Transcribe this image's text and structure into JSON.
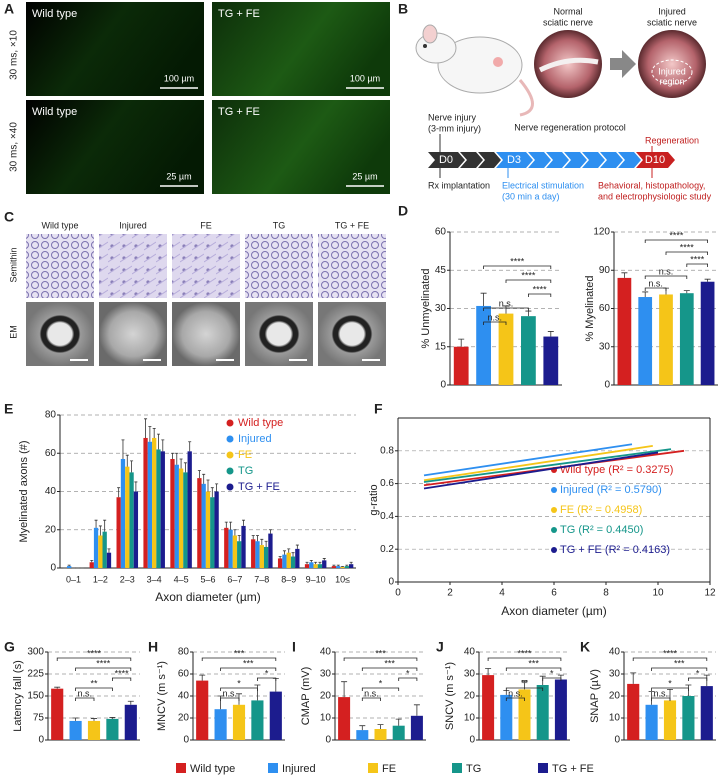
{
  "panel_labels": [
    "A",
    "B",
    "C",
    "D",
    "E",
    "F",
    "G",
    "H",
    "I",
    "J",
    "K"
  ],
  "panel_a": {
    "rows": [
      "30 ms, ×10",
      "30 ms, ×40"
    ],
    "images": [
      {
        "label": "Wild type",
        "scale": "100 µm"
      },
      {
        "label": "TG + FE",
        "scale": "100 µm"
      },
      {
        "label": "Wild type",
        "scale": "25 µm"
      },
      {
        "label": "TG + FE",
        "scale": "25 µm"
      }
    ]
  },
  "panel_b": {
    "normal": [
      "Normal",
      "sciatic nerve"
    ],
    "injured": [
      "Injured",
      "sciatic nerve"
    ],
    "injured_region": [
      "Injured",
      "region"
    ],
    "injury": [
      "Nerve injury",
      "(3-mm injury)"
    ],
    "protocol": "Nerve regeneration protocol",
    "regeneration": "Regeneration",
    "days": [
      "D0",
      "D3",
      "D10"
    ],
    "rx": "Rx implantation",
    "stim": [
      "Electrical stimulation",
      "(30 min a day)"
    ],
    "study": [
      "Behavioral, histopathology,",
      "and electrophysiologic study"
    ]
  },
  "panel_c": {
    "columns": [
      "Wild type",
      "Injured",
      "FE",
      "TG",
      "TG + FE"
    ],
    "rows": [
      "Semithin",
      "EM"
    ]
  },
  "legend": [
    {
      "name": "Wild type",
      "color": "#d42020"
    },
    {
      "name": "Injured",
      "color": "#2e8ff0"
    },
    {
      "name": "FE",
      "color": "#f5c518"
    },
    {
      "name": "TG",
      "color": "#15968a"
    },
    {
      "name": "TG + FE",
      "color": "#1c1c8e"
    }
  ],
  "chart_data": [
    {
      "type": "bar",
      "y_label": "% Unmyelinated",
      "values": [
        15,
        31,
        28,
        27,
        19
      ],
      "errors": [
        3,
        5,
        3,
        2,
        2
      ],
      "colors": [
        "#d42020",
        "#2e8ff0",
        "#f5c518",
        "#15968a",
        "#1c1c8e"
      ],
      "ylim": [
        0,
        60
      ],
      "yticks": [
        0,
        15,
        30,
        45,
        60
      ],
      "grid": true,
      "annotations": [
        "****",
        "****",
        "****",
        "n.s.",
        "n.s."
      ]
    },
    {
      "type": "bar",
      "y_label": "% Myelinated",
      "values": [
        84,
        69,
        71,
        72,
        81
      ],
      "errors": [
        4,
        4,
        5,
        2,
        2
      ],
      "colors": [
        "#d42020",
        "#2e8ff0",
        "#f5c518",
        "#15968a",
        "#1c1c8e"
      ],
      "ylim": [
        0,
        120
      ],
      "yticks": [
        0,
        30,
        60,
        90,
        120
      ],
      "grid": true,
      "annotations": [
        "****",
        "****",
        "****",
        "n.s.",
        "n.s."
      ]
    },
    {
      "type": "bar",
      "y_label": "Myelinated axons (#)",
      "x_label": "Axon diameter (µm)",
      "categories": [
        "0–1",
        "1–2",
        "2–3",
        "3–4",
        "4–5",
        "5–6",
        "6–7",
        "7–8",
        "8–9",
        "9–10",
        "10≤"
      ],
      "series": [
        {
          "name": "Wild type",
          "color": "#d42020",
          "values": [
            0,
            3,
            37,
            68,
            57,
            47,
            21,
            15,
            5,
            2,
            1
          ],
          "errors": [
            0,
            1,
            5,
            10,
            3,
            4,
            3,
            2,
            1,
            1,
            0.5
          ]
        },
        {
          "name": "Injured",
          "color": "#2e8ff0",
          "values": [
            1,
            21,
            57,
            66,
            54,
            44,
            20,
            14,
            7,
            3,
            1
          ],
          "errors": [
            0.5,
            4,
            10,
            8,
            6,
            5,
            4,
            3,
            2,
            1,
            0.5
          ]
        },
        {
          "name": "FE",
          "color": "#f5c518",
          "values": [
            0,
            17,
            53,
            68,
            52,
            40,
            17,
            12,
            8,
            2,
            0.5
          ],
          "errors": [
            0,
            5,
            6,
            5,
            5,
            6,
            3,
            3,
            2,
            1,
            0.3
          ]
        },
        {
          "name": "TG",
          "color": "#15968a",
          "values": [
            0,
            19,
            50,
            62,
            50,
            37,
            14,
            11,
            6,
            2,
            1
          ],
          "errors": [
            0,
            6,
            6,
            8,
            5,
            5,
            3,
            3,
            2,
            1,
            0.5
          ]
        },
        {
          "name": "TG + FE",
          "color": "#1c1c8e",
          "values": [
            0,
            8,
            40,
            61,
            61,
            40,
            22,
            18,
            10,
            4,
            2
          ],
          "errors": [
            0,
            2,
            5,
            6,
            5,
            4,
            3,
            2,
            2,
            1,
            1
          ]
        }
      ],
      "ylim": [
        0,
        80
      ],
      "yticks": [
        0,
        20,
        40,
        60,
        80
      ],
      "grid": true,
      "legend": "upper right"
    },
    {
      "type": "line",
      "y_label": "g-ratio",
      "x_label": "Axon diameter (µm)",
      "series": [
        {
          "name": "Wild type (R² = 0.3275)",
          "color": "#d42020",
          "x": [
            1,
            11
          ],
          "values": [
            0.59,
            0.8
          ]
        },
        {
          "name": "Injured (R² = 0.5790)",
          "color": "#2e8ff0",
          "x": [
            1,
            9
          ],
          "values": [
            0.65,
            0.84
          ]
        },
        {
          "name": "FE (R² = 0.4958)",
          "color": "#f5c518",
          "x": [
            1,
            9.8
          ],
          "values": [
            0.62,
            0.83
          ]
        },
        {
          "name": "TG (R² = 0.4450)",
          "color": "#15968a",
          "x": [
            1,
            10.5
          ],
          "values": [
            0.61,
            0.81
          ]
        },
        {
          "name": "TG + FE (R² = 0.4163)",
          "color": "#1c1c8e",
          "x": [
            1,
            10
          ],
          "values": [
            0.57,
            0.79
          ]
        }
      ],
      "xlim": [
        0,
        12
      ],
      "xticks": [
        0,
        2,
        4,
        6,
        8,
        10,
        12
      ],
      "ylim": [
        0,
        1
      ],
      "yticks": [
        0,
        0.2,
        0.4,
        0.6,
        0.8
      ],
      "grid": true,
      "legend": "right"
    },
    {
      "type": "bar",
      "y_label": "Latency fall (s)",
      "values": [
        175,
        65,
        65,
        72,
        120
      ],
      "errors": [
        5,
        10,
        8,
        5,
        12
      ],
      "colors": [
        "#d42020",
        "#2e8ff0",
        "#f5c518",
        "#15968a",
        "#1c1c8e"
      ],
      "ylim": [
        0,
        300
      ],
      "yticks": [
        0,
        75,
        150,
        225,
        300
      ],
      "grid": true,
      "annotations": [
        "****",
        "****",
        "****",
        "**",
        "n.s."
      ]
    },
    {
      "type": "bar",
      "y_label": "MNCV (m s⁻¹)",
      "values": [
        54,
        28,
        32,
        36,
        44
      ],
      "errors": [
        5,
        12,
        10,
        14,
        12
      ],
      "colors": [
        "#d42020",
        "#2e8ff0",
        "#f5c518",
        "#15968a",
        "#1c1c8e"
      ],
      "ylim": [
        0,
        80
      ],
      "yticks": [
        0,
        20,
        40,
        60,
        80
      ],
      "grid": true,
      "annotations": [
        "***",
        "***",
        "*",
        "*",
        "n.s."
      ]
    },
    {
      "type": "bar",
      "y_label": "CMAP (mV)",
      "values": [
        19.5,
        4.5,
        5,
        6.5,
        11
      ],
      "errors": [
        7,
        2,
        2,
        3,
        5
      ],
      "colors": [
        "#d42020",
        "#2e8ff0",
        "#f5c518",
        "#15968a",
        "#1c1c8e"
      ],
      "ylim": [
        0,
        40
      ],
      "yticks": [
        0,
        10,
        20,
        30,
        40
      ],
      "grid": true,
      "annotations": [
        "***",
        "***",
        "*",
        "*",
        "n.s."
      ]
    },
    {
      "type": "bar",
      "y_label": "SNCV (m s⁻¹)",
      "values": [
        29.5,
        20.5,
        23,
        25,
        27.5
      ],
      "errors": [
        3,
        2,
        4,
        4,
        2
      ],
      "colors": [
        "#d42020",
        "#2e8ff0",
        "#f5c518",
        "#15968a",
        "#1c1c8e"
      ],
      "ylim": [
        0,
        40
      ],
      "yticks": [
        0,
        10,
        20,
        30,
        40
      ],
      "grid": true,
      "annotations": [
        "****",
        "***",
        "*",
        "**",
        "n.s."
      ]
    },
    {
      "type": "bar",
      "y_label": "SNAP (µV)",
      "values": [
        25.5,
        16,
        18,
        20,
        24.5
      ],
      "errors": [
        5,
        6,
        5,
        5,
        5
      ],
      "colors": [
        "#d42020",
        "#2e8ff0",
        "#f5c518",
        "#15968a",
        "#1c1c8e"
      ],
      "ylim": [
        0,
        40
      ],
      "yticks": [
        0,
        10,
        20,
        30,
        40
      ],
      "grid": true,
      "annotations": [
        "****",
        "***",
        "*",
        "*",
        "n.s."
      ]
    }
  ]
}
